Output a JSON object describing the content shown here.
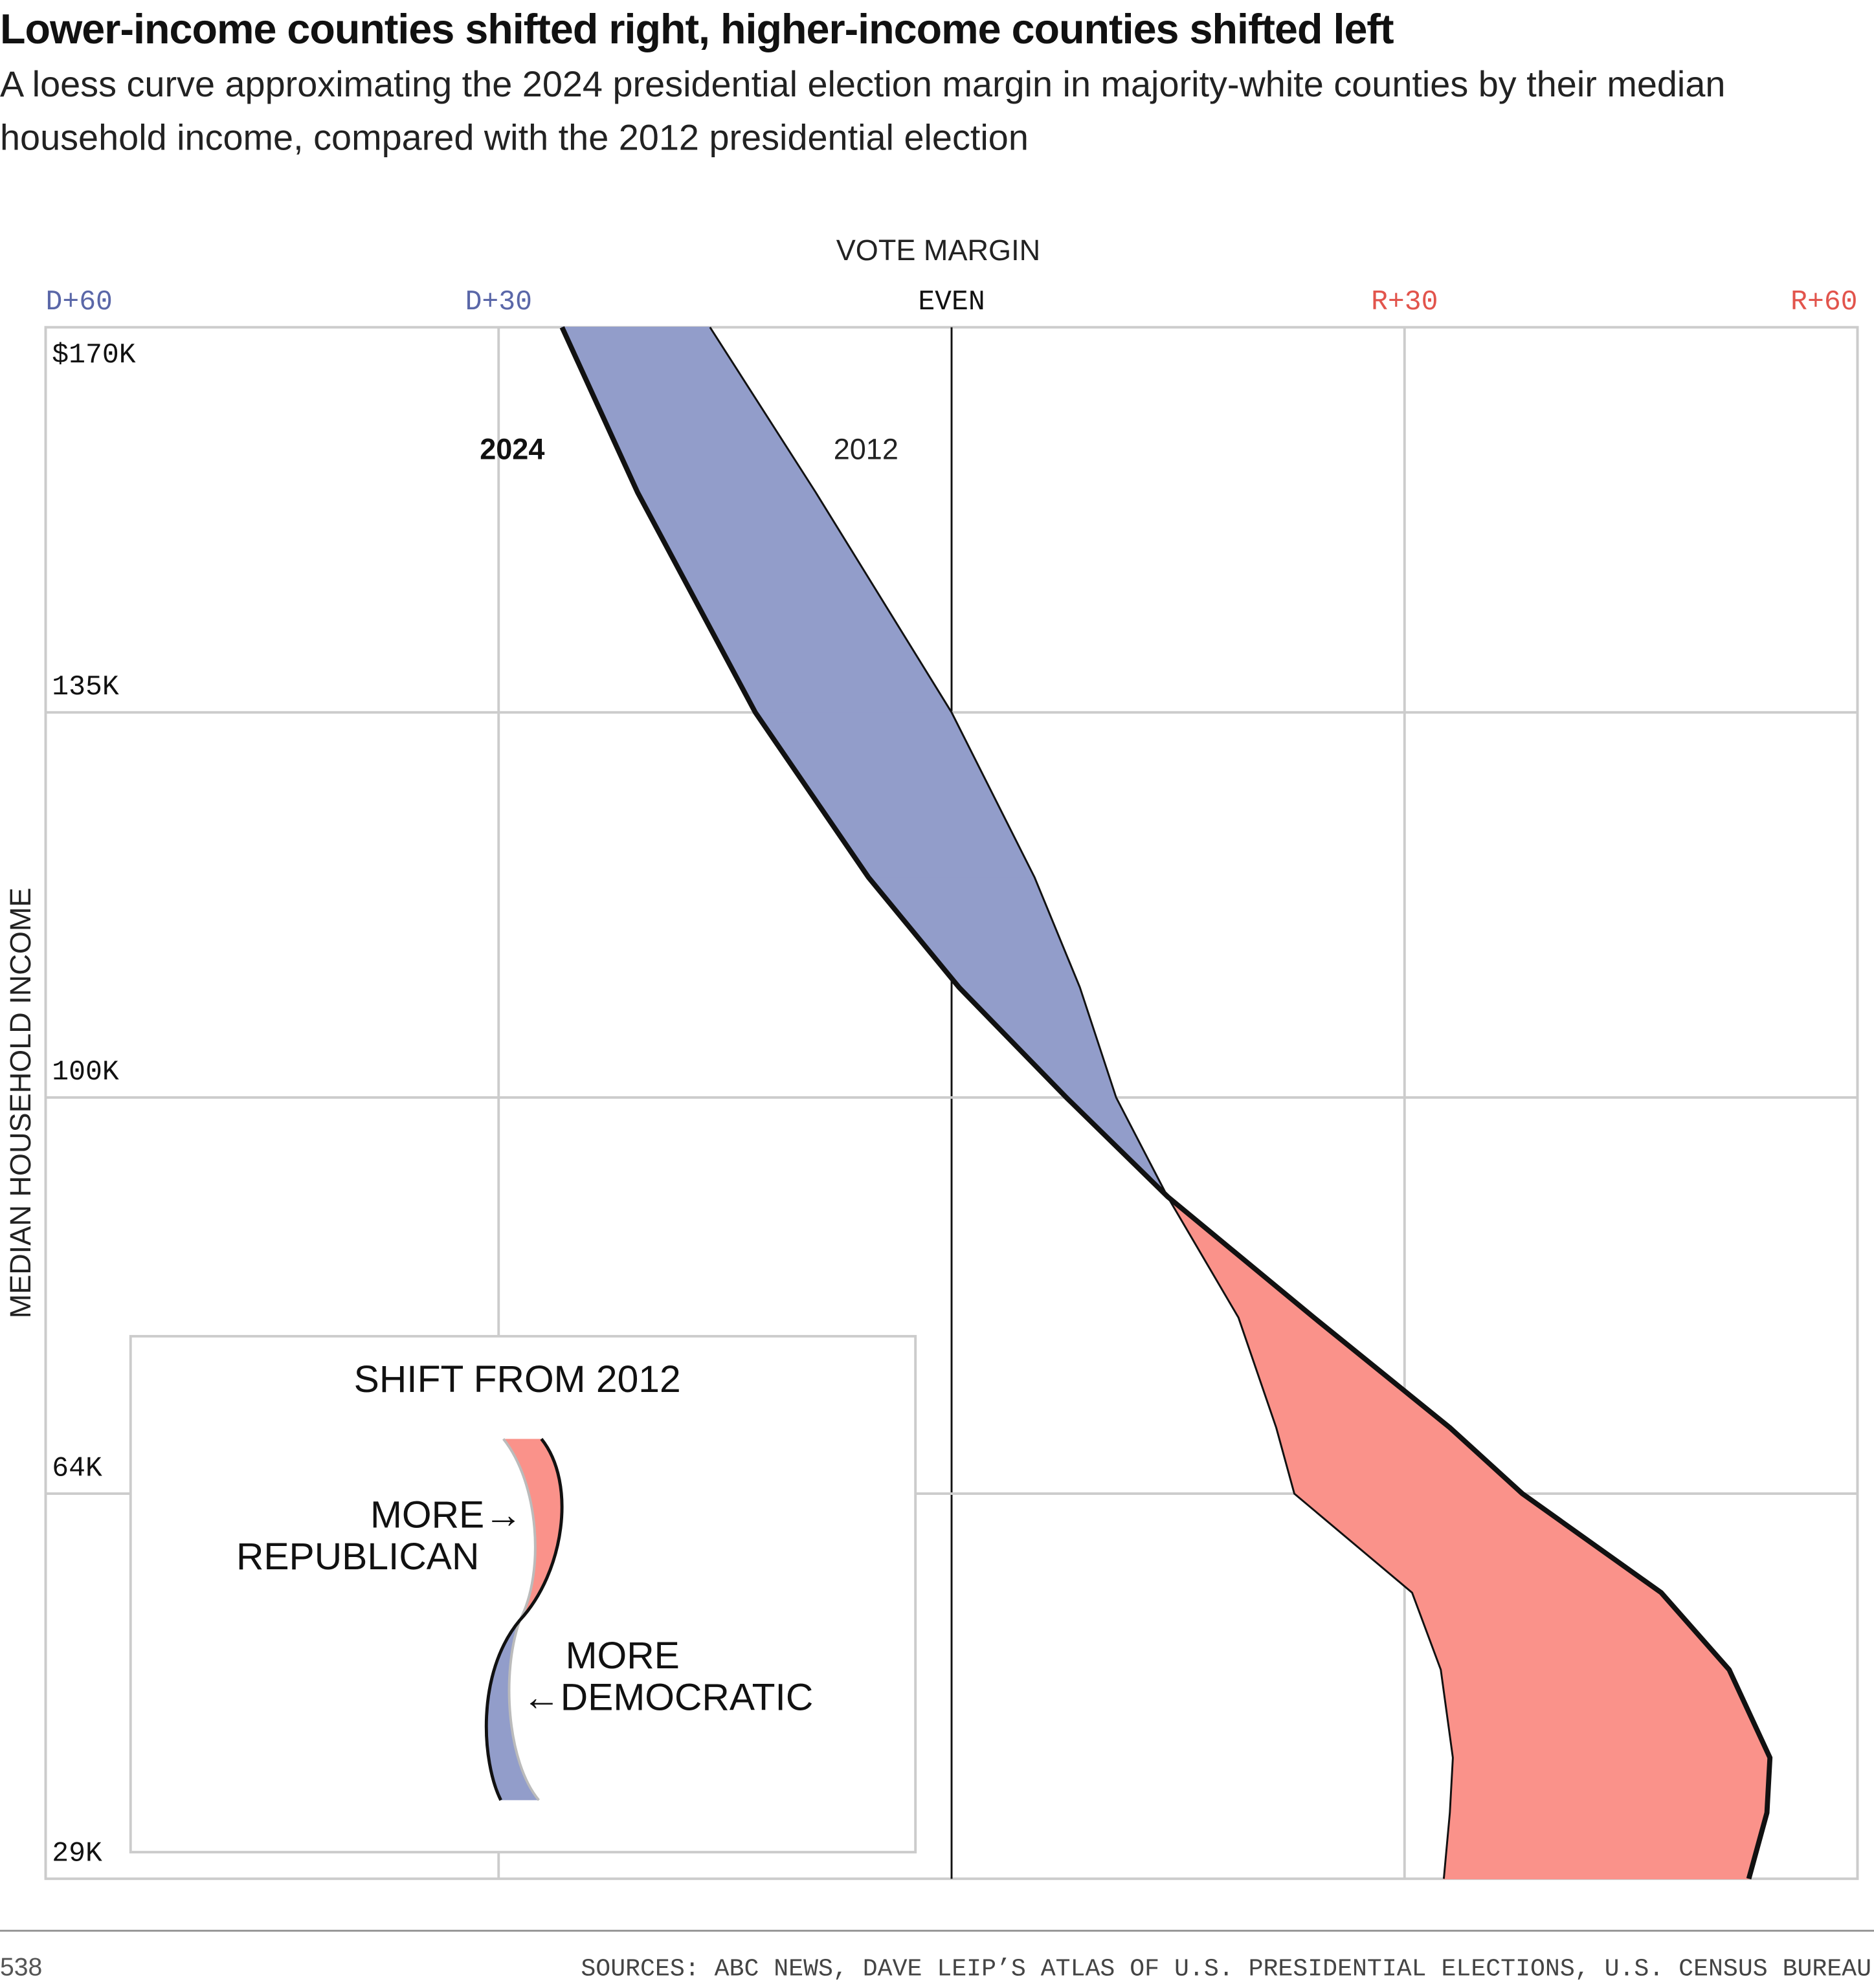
{
  "chart_data": {
    "type": "line",
    "title": "Lower-income counties shifted right, higher-income counties shifted left",
    "subtitle": "A loess curve approximating the 2024 presidential election margin in majority-white counties by their median household income, compared with the 2012 presidential election",
    "x_axis_title": "VOTE MARGIN",
    "y_axis_title": "MEDIAN HOUSEHOLD INCOME",
    "y": [
      170000,
      155000,
      135000,
      120000,
      110000,
      100000,
      91000,
      80000,
      70000,
      64000,
      55000,
      48000,
      40000,
      35000,
      29000
    ],
    "series": [
      {
        "name": "2024",
        "color": "#111111",
        "values": [
          -25.8,
          -20.8,
          -13,
          -5.5,
          0.5,
          7.6,
          14.3,
          24,
          33,
          37.8,
          47,
          51.5,
          54.2,
          54,
          52.8
        ]
      },
      {
        "name": "2012",
        "color": "#111111",
        "values": [
          -16,
          -9,
          0,
          5.5,
          8.5,
          10.9,
          14.3,
          19,
          21.5,
          22.7,
          30.5,
          32.4,
          33.2,
          33,
          32.6
        ]
      }
    ],
    "shift_colors": {
      "democratic": "#929dca",
      "republican": "#fa928a"
    },
    "xlim": [
      -60,
      60
    ],
    "xticks": [
      {
        "value": -60,
        "label": "D+60"
      },
      {
        "value": -30,
        "label": "D+30"
      },
      {
        "value": 0,
        "label": "EVEN"
      },
      {
        "value": 30,
        "label": "R+30"
      },
      {
        "value": 60,
        "label": "R+60"
      }
    ],
    "ylim": [
      29000,
      170000
    ],
    "yticks": [
      {
        "value": 170000,
        "label": "$170K"
      },
      {
        "value": 135000,
        "label": "135K"
      },
      {
        "value": 100000,
        "label": "100K"
      },
      {
        "value": 64000,
        "label": "64K"
      },
      {
        "value": 29000,
        "label": "29K"
      }
    ],
    "grid": true,
    "inset": {
      "title": "SHIFT FROM 2012",
      "republican": [
        "MORE→",
        "REPUBLICAN"
      ],
      "democratic": [
        "MORE",
        "←DEMOCRATIC"
      ]
    },
    "credit": "538",
    "sources": "SOURCES: ABC NEWS, DAVE LEIP’S ATLAS OF U.S. PRESIDENTIAL ELECTIONS, U.S. CENSUS BUREAU"
  }
}
